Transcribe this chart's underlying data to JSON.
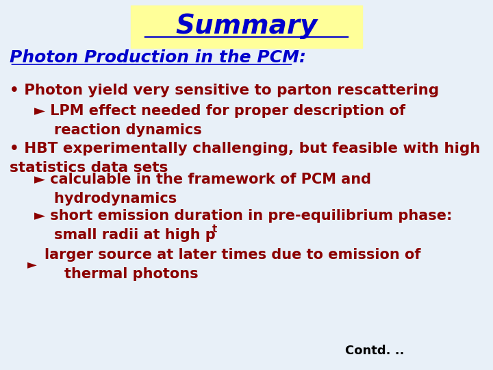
{
  "title": "Summary",
  "title_color": "#0000CC",
  "title_bg_color": "#FFFF99",
  "title_fontsize": 28,
  "subtitle": "Photon Production in the PCM:",
  "subtitle_color": "#0000CC",
  "subtitle_fontsize": 18,
  "background_color": "#E8F0F8",
  "bullet1_main": "• Photon yield very sensitive to parton rescattering",
  "bullet1_sub": "► LPM effect needed for proper description of\n    reaction dynamics",
  "bullet2_main": "• HBT experimentally challenging, but feasible with high\nstatistics data sets",
  "bullet2_sub1": "► calculable in the framework of PCM and\n    hydrodynamics",
  "bullet2_sub2": "► short emission duration in pre-equilibrium phase:\n    small radii at high p",
  "bullet2_sub2_t": "t",
  "bullet2_sub3_arrow": "►",
  "bullet2_sub3_text": "larger source at later times due to emission of\n    thermal photons",
  "contd": "Contd. ..",
  "text_color": "#8B0000",
  "contd_color": "#000000",
  "text_fontsize": 15.5,
  "sub_fontsize": 15.0
}
